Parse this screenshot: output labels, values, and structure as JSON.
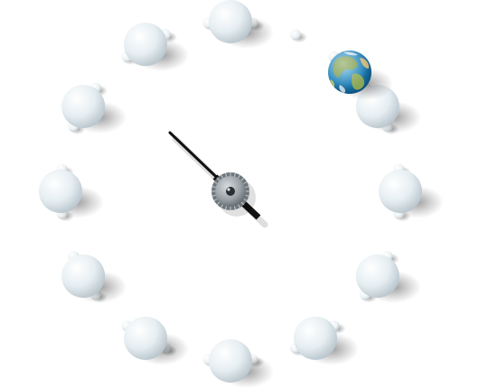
{
  "clock": {
    "hour_markers": 12,
    "minute_dots": 24,
    "time_shown": "10:22",
    "hour_ball_color": "#e6eef2",
    "dot_color": "#edf2f4",
    "globe_marker_position": "1 o'clock",
    "hand_color": "#111111",
    "hub_color": "#9ba3a8",
    "icons": {
      "globe": "earth-globe-icon",
      "balls": "sphere-marker-icon"
    }
  }
}
